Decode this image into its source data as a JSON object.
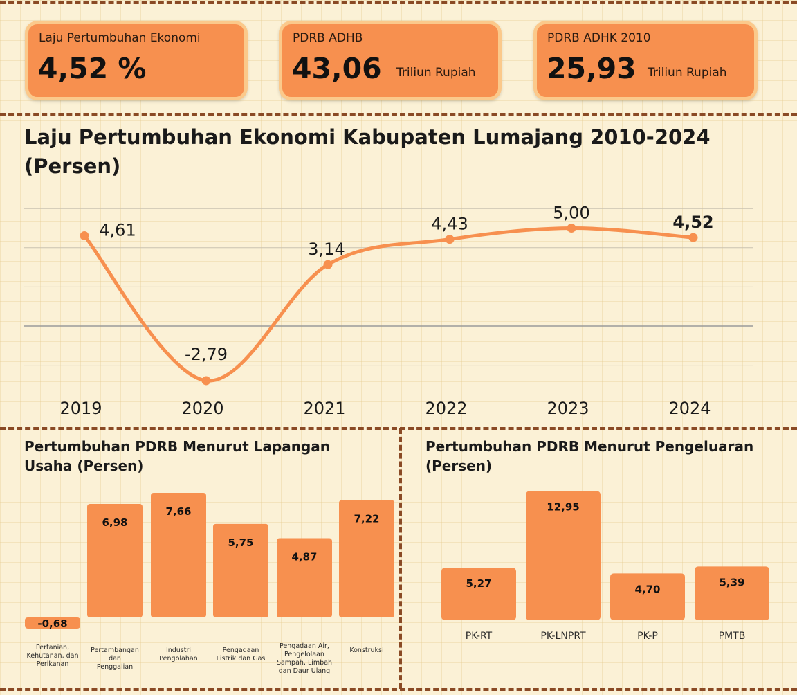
{
  "colors": {
    "accent": "#f7904f",
    "card_border": "#fbc98b",
    "divider": "#8a4a25",
    "background": "#fbf1d6"
  },
  "cards": [
    {
      "label": "Laju Pertumbuhan Ekonomi",
      "value": "4,52 %",
      "unit": ""
    },
    {
      "label": "PDRB ADHB",
      "value": "43,06",
      "unit": "Triliun Rupiah"
    },
    {
      "label": "PDRB ADHK 2010",
      "value": "25,93",
      "unit": "Triliun Rupiah"
    }
  ],
  "line_title": "Laju Pertumbuhan Ekonomi Kabupaten Lumajang 2010-2024 (Persen)",
  "sector_title": "Pertumbuhan PDRB Menurut Lapangan Usaha (Persen)",
  "expenditure_title": "Pertumbuhan PDRB Menurut Pengeluaran (Persen)",
  "chart_data": [
    {
      "type": "line",
      "title": "Laju Pertumbuhan Ekonomi Kabupaten Lumajang 2010-2024 (Persen)",
      "categories": [
        "2019",
        "2020",
        "2021",
        "2022",
        "2023",
        "2024"
      ],
      "values": [
        4.61,
        -2.79,
        3.14,
        4.43,
        5.0,
        4.52
      ],
      "labels": [
        "4,61",
        "-2,79",
        "3,14",
        "4,43",
        "5,00",
        "4,52"
      ],
      "ylim": [
        -3,
        6
      ],
      "grid": true
    },
    {
      "type": "bar",
      "title": "Pertumbuhan PDRB Menurut Lapangan Usaha (Persen)",
      "categories": [
        [
          "Pertanian,",
          "Kehutanan, dan",
          "Perikanan"
        ],
        [
          "Pertambangan",
          "dan",
          "Penggalian"
        ],
        [
          "Industri",
          "Pengolahan"
        ],
        [
          "Pengadaan",
          "Listrik dan Gas"
        ],
        [
          "Pengadaan Air,",
          "Pengelolaan",
          "Sampah, Limbah",
          "dan Daur Ulang"
        ],
        [
          "Konstruksi"
        ]
      ],
      "values": [
        -0.68,
        6.98,
        7.66,
        5.75,
        4.87,
        7.22
      ],
      "labels": [
        "-0,68",
        "6,98",
        "7,66",
        "5,75",
        "4,87",
        "7,22"
      ]
    },
    {
      "type": "bar",
      "title": "Pertumbuhan PDRB Menurut Pengeluaran (Persen)",
      "categories": [
        "PK-RT",
        "PK-LNPRT",
        "PK-P",
        "PMTB"
      ],
      "values": [
        5.27,
        12.95,
        4.7,
        5.39
      ],
      "labels": [
        "5,27",
        "12,95",
        "4,70",
        "5,39"
      ]
    }
  ]
}
